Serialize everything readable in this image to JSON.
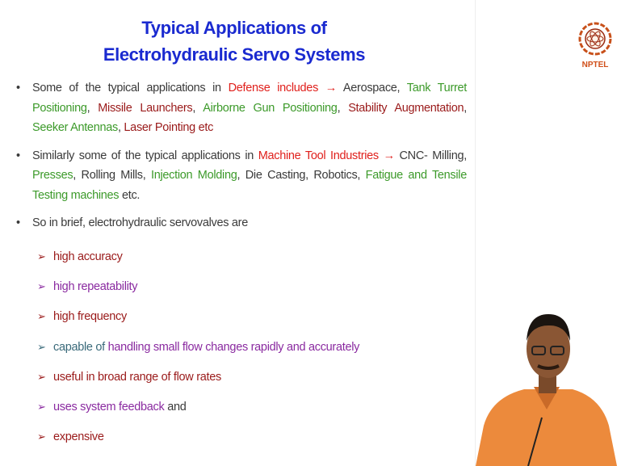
{
  "header": {
    "title_lines": [
      "Typical Applications of",
      "Electrohydraulic Servo Systems"
    ],
    "logo_label": "NPTEL"
  },
  "bullets": [
    {
      "segments": [
        {
          "text": "Some of the typical applications in ",
          "color": "#3a3a3a"
        },
        {
          "text": "Defense includes",
          "color": "#e0201c"
        },
        {
          "text": " → ",
          "color": "#e0201c"
        },
        {
          "text": "Aerospace",
          "color": "#3a3a3a"
        },
        {
          "text": ", ",
          "color": "#3a3a3a"
        },
        {
          "text": "Tank Turret Positioning",
          "color": "#3c9a2a"
        },
        {
          "text": ", ",
          "color": "#3a3a3a"
        },
        {
          "text": "Missile Launchers",
          "color": "#9a1a1a"
        },
        {
          "text": ", ",
          "color": "#3a3a3a"
        },
        {
          "text": "Airborne Gun Positioning",
          "color": "#3c9a2a"
        },
        {
          "text": ", ",
          "color": "#3a3a3a"
        },
        {
          "text": "Stability Augmentation",
          "color": "#9a1a1a"
        },
        {
          "text": ", ",
          "color": "#3a3a3a"
        },
        {
          "text": "Seeker Antennas",
          "color": "#3c9a2a"
        },
        {
          "text": ", ",
          "color": "#3a3a3a"
        },
        {
          "text": "Laser Pointing etc",
          "color": "#9a1a1a"
        }
      ]
    },
    {
      "segments": [
        {
          "text": "Similarly some of the typical applications in ",
          "color": "#3a3a3a"
        },
        {
          "text": "Machine Tool Industries",
          "color": "#e0201c"
        },
        {
          "text": " → ",
          "color": "#e0201c"
        },
        {
          "text": "CNC- Milling, ",
          "color": "#3a3a3a"
        },
        {
          "text": "Presses",
          "color": "#3c9a2a"
        },
        {
          "text": ", Rolling Mills, ",
          "color": "#3a3a3a"
        },
        {
          "text": "Injection Molding",
          "color": "#3c9a2a"
        },
        {
          "text": ", Die Casting, Robotics, ",
          "color": "#3a3a3a"
        },
        {
          "text": "Fatigue and Tensile Testing machines",
          "color": "#3c9a2a"
        },
        {
          "text": " etc.",
          "color": "#3a3a3a"
        }
      ]
    },
    {
      "segments": [
        {
          "text": "So in brief, electrohydraulic servovalves are",
          "color": "#3a3a3a"
        }
      ]
    }
  ],
  "sub_items": [
    {
      "segments": [
        {
          "text": "high accuracy",
          "color": "#9a1a1a"
        }
      ]
    },
    {
      "segments": [
        {
          "text": "high repeatability",
          "color": "#8a2aa0"
        }
      ]
    },
    {
      "segments": [
        {
          "text": "high frequency",
          "color": "#9a1a1a"
        }
      ]
    },
    {
      "segments": [
        {
          "text": "capable of ",
          "color": "#3a6a7a"
        },
        {
          "text": "handling small flow changes rapidly and accurately",
          "color": "#8a2aa0"
        }
      ]
    },
    {
      "segments": [
        {
          "text": "useful in broad range of flow rates",
          "color": "#9a1a1a"
        }
      ]
    },
    {
      "segments": [
        {
          "text": "uses system feedback",
          "color": "#8a2aa0"
        },
        {
          "text": " and",
          "color": "#3a3a3a"
        }
      ]
    },
    {
      "segments": [
        {
          "text": "expensive",
          "color": "#9a1a1a"
        }
      ]
    }
  ]
}
